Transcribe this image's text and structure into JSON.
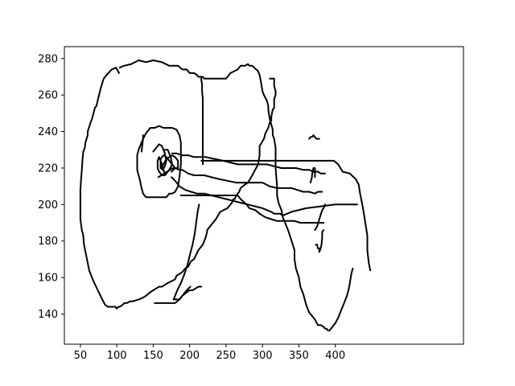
{
  "chart_data": {
    "type": "line",
    "title": "",
    "xlabel": "",
    "ylabel": "",
    "xlim": [
      28,
      576
    ],
    "ylim": [
      123.5,
      286.5
    ],
    "grid": false,
    "x_ticks": [
      50,
      100,
      150,
      200,
      250,
      300,
      350,
      400
    ],
    "y_ticks": [
      140,
      160,
      180,
      200,
      220,
      240,
      260,
      280
    ],
    "line_color": "#000000",
    "series": [
      {
        "x": [
          103,
          99,
          93,
          86,
          82,
          78,
          72,
          70,
          66,
          64,
          60,
          60,
          57,
          56,
          55,
          54,
          53,
          52,
          51,
          50,
          50,
          50,
          50,
          52,
          54,
          55,
          58,
          62,
          68,
          74,
          80,
          84,
          88,
          92,
          94,
          98,
          100,
          102,
          104,
          108,
          110,
          114,
          118,
          122,
          130,
          136,
          140,
          146,
          150,
          154,
          158,
          162,
          166,
          170,
          180,
          182,
          186,
          190,
          194,
          198,
          202,
          206,
          212,
          218,
          222,
          224,
          224,
          228,
          232,
          236,
          242,
          252,
          258,
          260,
          262,
          264,
          268,
          270,
          276,
          280,
          286,
          290,
          294,
          296,
          296,
          302,
          304,
          308,
          310,
          312,
          312,
          314,
          316,
          316,
          318,
          318,
          316,
          316,
          316,
          314,
          314,
          314,
          312,
          312,
          312,
          310
        ],
        "y": [
          272,
          275,
          274,
          271,
          269,
          264,
          254,
          253,
          247,
          245,
          240,
          238,
          234,
          231,
          230,
          229,
          225,
          219,
          214,
          208,
          201,
          196,
          192,
          186,
          183,
          178,
          172,
          164,
          158,
          153,
          148,
          145,
          144,
          144,
          144,
          144,
          143,
          144,
          144,
          145,
          146,
          146,
          147,
          147,
          148,
          149,
          150,
          152,
          153,
          154,
          155,
          155,
          156,
          157,
          159,
          161,
          162,
          163,
          165,
          166,
          169,
          170,
          175,
          178,
          182,
          185,
          186,
          188,
          190,
          192,
          196,
          198,
          201,
          203,
          203,
          205,
          207,
          209,
          211,
          212,
          216,
          219,
          222,
          227,
          232,
          236,
          239,
          242,
          245,
          246,
          248,
          252,
          253,
          258,
          260,
          262,
          265,
          267,
          269,
          269,
          269,
          269,
          269,
          269,
          269,
          269
        ]
      },
      {
        "x": [
          104,
          110,
          120,
          130,
          140,
          150,
          162,
          172,
          184,
          190,
          196,
          200,
          206,
          210,
          212,
          216
        ],
        "y": [
          275,
          276,
          277,
          279,
          278,
          279,
          278,
          276,
          276,
          274,
          274,
          272,
          272,
          271,
          270,
          270
        ]
      },
      {
        "x": [
          216,
          218,
          220,
          230,
          240,
          250,
          256,
          266,
          270,
          276,
          280,
          282,
          286,
          294,
          296,
          298,
          300,
          302,
          306,
          308,
          308,
          310,
          312,
          314,
          314,
          316,
          318,
          318,
          318,
          320,
          320,
          322,
          326,
          328,
          332,
          336,
          340,
          344,
          344,
          346,
          350,
          352,
          356,
          360,
          364,
          368,
          372,
          376
        ],
        "y": [
          270,
          270,
          269,
          269,
          269,
          269,
          272,
          274,
          276,
          276,
          277,
          276,
          276,
          273,
          271,
          267,
          262,
          260,
          257,
          254,
          252,
          247,
          244,
          241,
          238,
          236,
          231,
          225,
          220,
          210,
          205,
          201,
          197,
          193,
          189,
          185,
          180,
          175,
          170,
          165,
          160,
          155,
          151,
          145,
          141,
          139,
          137,
          134
        ]
      },
      {
        "x": [
          376,
          380,
          384,
          386,
          388,
          390,
          392,
          396,
          400,
          404,
          408,
          412,
          416,
          418,
          420,
          422,
          424
        ],
        "y": [
          134,
          134,
          133,
          132,
          132,
          131,
          131,
          133,
          135,
          138,
          142,
          146,
          150,
          153,
          157,
          162,
          165
        ]
      },
      {
        "x": [
          216,
          216,
          217,
          217,
          218,
          218,
          218,
          218,
          218,
          218,
          218,
          218
        ],
        "y": [
          270,
          268,
          266,
          262,
          258,
          252,
          246,
          240,
          234,
          228,
          224,
          222
        ]
      },
      {
        "x": [
          216,
          240,
          260,
          280,
          300,
          320,
          340,
          360,
          380,
          398,
          404,
          410
        ],
        "y": [
          224,
          224,
          224,
          224,
          224,
          224,
          224,
          224,
          224,
          224,
          222,
          218
        ]
      },
      {
        "x": [
          410,
          420,
          428,
          432,
          434,
          436,
          438,
          440,
          442,
          444,
          444,
          446,
          448
        ],
        "y": [
          218,
          217,
          214,
          211,
          206,
          202,
          198,
          193,
          188,
          183,
          175,
          168,
          164
        ]
      },
      {
        "x": [
          213,
          211,
          209,
          207,
          204,
          200,
          197,
          193,
          188,
          183,
          178
        ],
        "y": [
          200,
          196,
          190,
          184,
          178,
          172,
          167,
          162,
          157,
          153,
          148
        ]
      },
      {
        "x": [
          178,
          182,
          186,
          190,
          196,
          201
        ],
        "y": [
          148,
          148,
          148,
          150,
          153,
          155
        ]
      },
      {
        "x": [
          152,
          158,
          166,
          174,
          180,
          186,
          190,
          196,
          200,
          204,
          208,
          212,
          216
        ],
        "y": [
          146,
          146,
          146,
          146,
          146,
          148,
          150,
          152,
          153,
          153,
          154,
          155,
          155
        ]
      },
      {
        "x": [
          188,
          192,
          196,
          200,
          206,
          212,
          216,
          220,
          226,
          232,
          238,
          244,
          250,
          256,
          262,
          266,
          270,
          278,
          282,
          290,
          296,
          304,
          312,
          320,
          330,
          340,
          344
        ],
        "y": [
          205,
          205,
          205,
          205,
          205,
          205,
          205,
          205,
          205,
          205,
          205,
          205,
          205,
          205,
          205,
          205,
          203,
          200,
          198,
          197,
          195,
          193,
          192,
          191,
          191,
          191,
          191
        ]
      },
      {
        "x": [
          344,
          352,
          360,
          368,
          376,
          384
        ],
        "y": [
          191,
          190,
          190,
          190,
          190,
          190
        ]
      },
      {
        "x": [
          175,
          180,
          186,
          194,
          202,
          210,
          220,
          230,
          240,
          250,
          260,
          270,
          280,
          290,
          300,
          306,
          312,
          316,
          320,
          324,
          328
        ],
        "y": [
          215,
          213,
          210,
          208,
          207,
          206,
          206,
          205,
          204,
          203,
          202,
          201,
          200,
          199,
          198,
          197,
          196,
          195,
          195,
          195,
          194
        ]
      },
      {
        "x": [
          328,
          340,
          360,
          380,
          400,
          412,
          430
        ],
        "y": [
          194,
          196,
          198,
          199,
          200,
          200,
          200
        ]
      },
      {
        "x": [
          175,
          180,
          186,
          190,
          198,
          206,
          220,
          230,
          240,
          252,
          264,
          276,
          286,
          300,
          310,
          320,
          330,
          340,
          348,
          356,
          364,
          372,
          376,
          382
        ],
        "y": [
          218,
          220,
          219,
          219,
          217,
          216,
          216,
          215,
          214,
          213,
          212,
          212,
          212,
          212,
          210,
          209,
          209,
          209,
          208,
          207,
          207,
          206,
          207,
          207
        ]
      },
      {
        "x": [
          373,
          375,
          376,
          378,
          378,
          380,
          381,
          382,
          382,
          384
        ],
        "y": [
          178,
          178,
          176,
          176,
          174,
          176,
          178,
          182,
          185,
          186
        ]
      },
      {
        "x": [
          364,
          366,
          368,
          370,
          372,
          374,
          376,
          378
        ],
        "y": [
          236,
          237,
          237,
          238,
          237,
          236,
          236,
          236
        ]
      },
      {
        "x": [
          176,
          182,
          190,
          198,
          206,
          214,
          222,
          234,
          246,
          256,
          266,
          276,
          286,
          296,
          306,
          316,
          326,
          336,
          346,
          356,
          364,
          370,
          376,
          380,
          386
        ],
        "y": [
          228,
          228,
          227,
          227,
          226,
          226,
          226,
          225,
          224,
          223,
          222,
          222,
          222,
          222,
          222,
          221,
          220,
          220,
          220,
          219,
          219,
          218,
          218,
          217,
          217
        ]
      },
      {
        "x": [
          134,
          136,
          140,
          146,
          152,
          158,
          164,
          170,
          176,
          182,
          186,
          188,
          188,
          188,
          186,
          184,
          180,
          176,
          172,
          168,
          162,
          156,
          150,
          144,
          140,
          136,
          134,
          132,
          130,
          128,
          128,
          128,
          130,
          132,
          134,
          136,
          136
        ],
        "y": [
          229,
          236,
          239,
          242,
          242,
          243,
          242,
          242,
          242,
          241,
          238,
          234,
          228,
          222,
          215,
          210,
          207,
          206,
          206,
          204,
          204,
          204,
          204,
          204,
          204,
          206,
          209,
          213,
          216,
          219,
          222,
          227,
          230,
          232,
          234,
          236,
          238
        ]
      },
      {
        "x": [
          150,
          154,
          158,
          162,
          166,
          168,
          166,
          163,
          160,
          160,
          164,
          168,
          172,
          176,
          180,
          184,
          184,
          180,
          176,
          172,
          168,
          164,
          160
        ],
        "y": [
          229,
          231,
          233,
          232,
          228,
          224,
          221,
          219,
          220,
          225,
          227,
          226,
          224,
          222,
          220,
          220,
          224,
          226,
          227,
          226,
          225,
          222,
          220
        ]
      },
      {
        "x": [
          166,
          170,
          174,
          176,
          172,
          168,
          166,
          164,
          162,
          160,
          158,
          156,
          156,
          158,
          162,
          166,
          170
        ],
        "y": [
          230,
          230,
          226,
          222,
          219,
          217,
          217,
          219,
          222,
          224,
          226,
          224,
          220,
          218,
          216,
          216,
          218
        ]
      },
      {
        "x": [
          157,
          161,
          165,
          169,
          173,
          177,
          181
        ],
        "y": [
          215,
          216,
          217,
          218,
          219,
          220,
          220
        ]
      },
      {
        "x": [
          366,
          368,
          368,
          370,
          372,
          372
        ],
        "y": [
          212,
          215,
          216,
          220,
          220,
          215
        ]
      },
      {
        "x": [
          372,
          375,
          378,
          382,
          384,
          386
        ],
        "y": [
          186,
          188,
          192,
          197,
          198,
          200
        ]
      }
    ]
  }
}
